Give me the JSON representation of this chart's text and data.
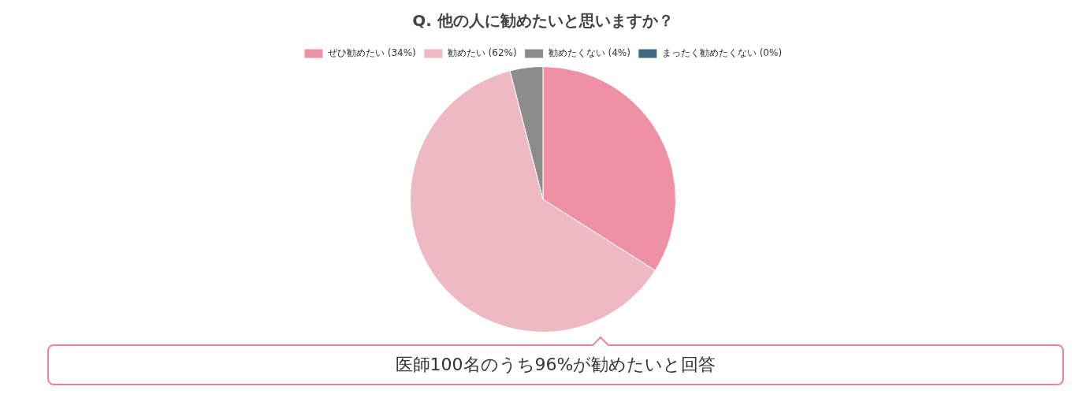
{
  "chart_data": {
    "type": "pie",
    "title": "Q. 他の人に勧めたいと思いますか？",
    "categories": [
      "ぜひ勧めたい (34%)",
      "勧めたい (62%)",
      "勧めたくない (4%)",
      "まったく勧めたくない (0%)"
    ],
    "values": [
      34,
      62,
      4,
      0
    ],
    "colors": [
      "#ee91a5",
      "#efb9c4",
      "#8c8c8c",
      "#3d6a80"
    ],
    "legend": "top",
    "annotations": [
      "医師100名のうち96%が勧めたいと回答"
    ]
  }
}
